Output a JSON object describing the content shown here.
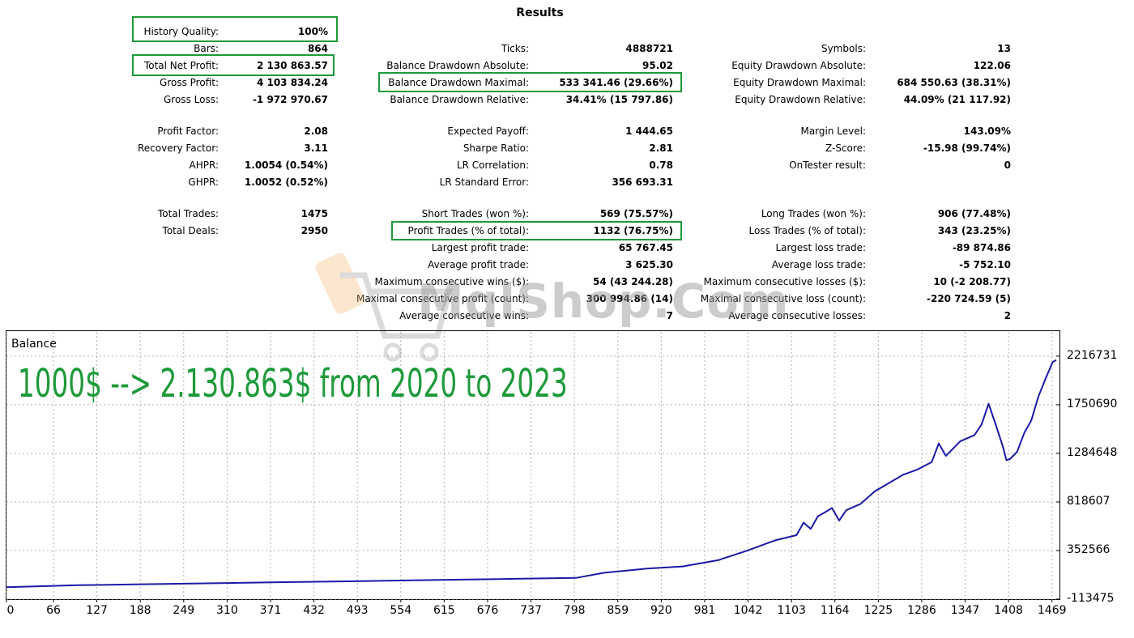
{
  "page": {
    "title": "Results"
  },
  "stats": {
    "col1": [
      {
        "label": "History Quality:",
        "value": "100%",
        "highlight": true
      },
      {
        "label": "Bars:",
        "value": "864"
      },
      {
        "label": "Total Net Profit:",
        "value": "2 130 863.57",
        "highlight": true
      },
      {
        "label": "Gross Profit:",
        "value": "4 103 834.24"
      },
      {
        "label": "Gross Loss:",
        "value": "-1 972 970.67"
      },
      {
        "label": "Profit Factor:",
        "value": "2.08"
      },
      {
        "label": "Recovery Factor:",
        "value": "3.11"
      },
      {
        "label": "AHPR:",
        "value": "1.0054 (0.54%)"
      },
      {
        "label": "GHPR:",
        "value": "1.0052 (0.52%)"
      },
      {
        "label": "Total Trades:",
        "value": "1475"
      },
      {
        "label": "Total Deals:",
        "value": "2950"
      }
    ],
    "col2": [
      {
        "label": "Ticks:",
        "value": "4888721"
      },
      {
        "label": "Balance Drawdown Absolute:",
        "value": "95.02"
      },
      {
        "label": "Balance Drawdown Maximal:",
        "value": "533 341.46 (29.66%)",
        "highlight": true
      },
      {
        "label": "Balance Drawdown Relative:",
        "value": "34.41% (15 797.86)"
      },
      {
        "label": "Expected Payoff:",
        "value": "1 444.65"
      },
      {
        "label": "Sharpe Ratio:",
        "value": "2.81"
      },
      {
        "label": "LR Correlation:",
        "value": "0.78"
      },
      {
        "label": "LR Standard Error:",
        "value": "356 693.31"
      },
      {
        "label": "Short Trades (won %):",
        "value": "569 (75.57%)"
      },
      {
        "label": "Profit Trades (% of total):",
        "value": "1132 (76.75%)",
        "highlight": true
      },
      {
        "label": "Largest profit trade:",
        "value": "65 767.45"
      },
      {
        "label": "Average profit trade:",
        "value": "3 625.30"
      },
      {
        "label": "Maximum consecutive wins ($):",
        "value": "54 (43 244.28)"
      },
      {
        "label": "Maximal consecutive profit (count):",
        "value": "300 994.86 (14)"
      },
      {
        "label": "Average consecutive wins:",
        "value": "7"
      }
    ],
    "col3": [
      {
        "label": "Symbols:",
        "value": "13"
      },
      {
        "label": "Equity Drawdown Absolute:",
        "value": "122.06"
      },
      {
        "label": "Equity Drawdown Maximal:",
        "value": "684 550.63 (38.31%)"
      },
      {
        "label": "Equity Drawdown Relative:",
        "value": "44.09% (21 117.92)"
      },
      {
        "label": "Margin Level:",
        "value": "143.09%"
      },
      {
        "label": "Z-Score:",
        "value": "-15.98 (99.74%)"
      },
      {
        "label": "OnTester result:",
        "value": "0"
      },
      {
        "label": "Long Trades (won %):",
        "value": "906 (77.48%)"
      },
      {
        "label": "Loss Trades (% of total):",
        "value": "343 (23.25%)"
      },
      {
        "label": "Largest loss trade:",
        "value": "-89 874.86"
      },
      {
        "label": "Average loss trade:",
        "value": "-5 752.10"
      },
      {
        "label": "Maximum consecutive losses ($):",
        "value": "10 (-2 208.77)"
      },
      {
        "label": "Maximal consecutive loss (count):",
        "value": "-220 724.59 (5)"
      },
      {
        "label": "Average consecutive losses:",
        "value": "2"
      }
    ]
  },
  "watermark": {
    "text": "MqlShop.Com",
    "icon": "shopping-cart-icon"
  },
  "overlay": {
    "text": "1000$ --> 2.130.863$ from 2020 to 2023",
    "color": "#1e9a3a"
  },
  "chart_data": {
    "type": "line",
    "title": "Balance",
    "xlabel": "",
    "ylabel": "",
    "x_ticks": [
      0,
      66,
      127,
      188,
      249,
      310,
      371,
      432,
      493,
      554,
      615,
      676,
      737,
      798,
      859,
      920,
      981,
      1042,
      1103,
      1164,
      1225,
      1286,
      1347,
      1408,
      1469
    ],
    "y_ticks": [
      2216731,
      1750690,
      1284648,
      818607,
      352566,
      -113475
    ],
    "xlim": [
      0,
      1475
    ],
    "ylim": [
      -113475,
      2449000
    ],
    "grid": true,
    "line_color": "#1a1aa8",
    "series": [
      {
        "x": [
          0,
          100,
          200,
          300,
          400,
          500,
          600,
          700,
          800,
          840,
          900,
          950,
          1000,
          1040,
          1080,
          1110,
          1120,
          1130,
          1140,
          1150,
          1160,
          1170,
          1180,
          1200,
          1220,
          1240,
          1260,
          1280,
          1300,
          1310,
          1320,
          1340,
          1360,
          1370,
          1380,
          1390,
          1400,
          1405,
          1410,
          1420,
          1430,
          1440,
          1450,
          1460,
          1470,
          1475
        ],
        "y": [
          1000,
          20000,
          30000,
          40000,
          50000,
          60000,
          70000,
          80000,
          90000,
          140000,
          180000,
          200000,
          260000,
          350000,
          450000,
          500000,
          620000,
          560000,
          680000,
          720000,
          760000,
          640000,
          740000,
          800000,
          920000,
          1000000,
          1080000,
          1130000,
          1200000,
          1380000,
          1260000,
          1400000,
          1460000,
          1560000,
          1760000,
          1560000,
          1350000,
          1220000,
          1230000,
          1300000,
          1480000,
          1600000,
          1830000,
          2000000,
          2160000,
          2180000
        ]
      }
    ]
  }
}
